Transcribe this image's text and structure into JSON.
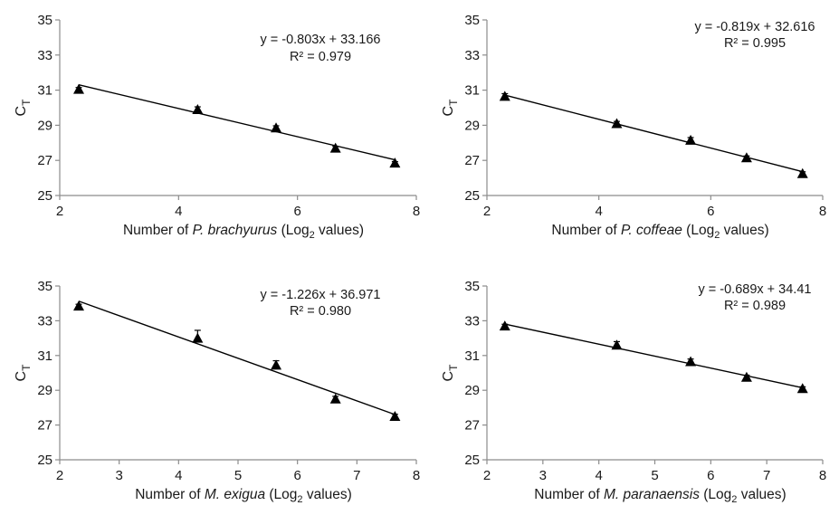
{
  "chart_data": [
    {
      "type": "scatter",
      "ylabel": "C",
      "ylabel_sub": "T",
      "xlabel": {
        "pre": "Number of ",
        "species": "P. brachyurus",
        "mid": " (Log",
        "sub": "2",
        "post": " values)"
      },
      "xlim": [
        2,
        8
      ],
      "ylim": [
        25,
        35
      ],
      "xticks": [
        2,
        4,
        6,
        8
      ],
      "yticks": [
        25,
        27,
        29,
        31,
        33,
        35
      ],
      "grid": false,
      "points": {
        "x": [
          2.32,
          4.32,
          5.64,
          6.64,
          7.64
        ],
        "y": [
          31.05,
          29.9,
          28.85,
          27.7,
          26.85
        ],
        "err": [
          0.1,
          0.15,
          0.12,
          0.1,
          0.08
        ]
      },
      "trendline": {
        "slope": -0.803,
        "intercept": 33.166
      },
      "equation": "y = -0.803x + 33.166",
      "r2": "R² = 0.979"
    },
    {
      "type": "scatter",
      "ylabel": "C",
      "ylabel_sub": "T",
      "xlabel": {
        "pre": "Number of ",
        "species": "P. coffeae",
        "mid": " (Log",
        "sub": "2",
        "post": " values)"
      },
      "xlim": [
        2,
        8
      ],
      "ylim": [
        25,
        35
      ],
      "xticks": [
        2,
        4,
        6,
        8
      ],
      "yticks": [
        25,
        27,
        29,
        31,
        33,
        35
      ],
      "grid": false,
      "points": {
        "x": [
          2.32,
          4.32,
          5.64,
          6.64,
          7.64
        ],
        "y": [
          30.65,
          29.1,
          28.15,
          27.15,
          26.25
        ],
        "err": [
          0.15,
          0.12,
          0.15,
          0.1,
          0.1
        ]
      },
      "trendline": {
        "slope": -0.819,
        "intercept": 32.616
      },
      "equation": "y = -0.819x + 32.616",
      "r2": "R² = 0.995"
    },
    {
      "type": "scatter",
      "ylabel": "C",
      "ylabel_sub": "T",
      "xlabel": {
        "pre": "Number of ",
        "species": "M. exigua",
        "mid": " (Log",
        "sub": "2",
        "post": " values)"
      },
      "xlim": [
        2,
        8
      ],
      "ylim": [
        25,
        35
      ],
      "xticks": [
        2,
        3,
        4,
        5,
        6,
        7,
        8
      ],
      "yticks": [
        25,
        27,
        29,
        31,
        33,
        35
      ],
      "grid": false,
      "points": {
        "x": [
          2.32,
          4.32,
          5.64,
          6.64,
          7.64
        ],
        "y": [
          33.85,
          32.0,
          30.45,
          28.5,
          27.5
        ],
        "err": [
          0.1,
          0.45,
          0.25,
          0.15,
          0.12
        ]
      },
      "trendline": {
        "slope": -1.226,
        "intercept": 36.971
      },
      "equation": "y = -1.226x + 36.971",
      "r2": "R² = 0.980"
    },
    {
      "type": "scatter",
      "ylabel": "C",
      "ylabel_sub": "T",
      "xlabel": {
        "pre": "Number of ",
        "species": "M. paranaensis",
        "mid": " (Log",
        "sub": "2",
        "post": " values)"
      },
      "xlim": [
        2,
        8
      ],
      "ylim": [
        25,
        35
      ],
      "xticks": [
        2,
        3,
        4,
        5,
        6,
        7,
        8
      ],
      "yticks": [
        25,
        27,
        29,
        31,
        33,
        35
      ],
      "grid": false,
      "points": {
        "x": [
          2.32,
          4.32,
          5.64,
          6.64,
          7.64
        ],
        "y": [
          32.7,
          31.6,
          30.65,
          29.75,
          29.1
        ],
        "err": [
          0.1,
          0.2,
          0.15,
          0.12,
          0.1
        ]
      },
      "trendline": {
        "slope": -0.689,
        "intercept": 34.41
      },
      "equation": "y = -0.689x + 34.41",
      "r2": "R² = 0.989"
    }
  ]
}
